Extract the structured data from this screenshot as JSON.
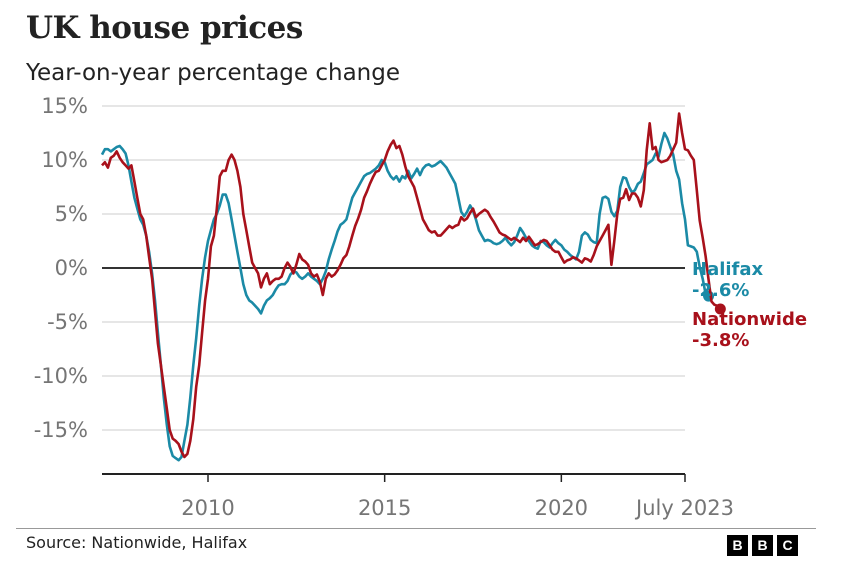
{
  "header": {
    "title": "UK house prices",
    "subtitle": "Year-on-year percentage change"
  },
  "footer": {
    "source": "Source: Nationwide, Halifax",
    "logo_letters": [
      "B",
      "B",
      "C"
    ]
  },
  "chart_data": {
    "type": "line",
    "title": "UK house prices",
    "subtitle": "Year-on-year percentage change",
    "xlabel": "",
    "ylabel": "",
    "x_start": "2007-01",
    "x_end": "2023-07",
    "x_frequency": "monthly",
    "xlim": [
      2007.0,
      2023.5
    ],
    "ylim": [
      -19,
      15
    ],
    "yticks": [
      15,
      10,
      5,
      0,
      -5,
      -10,
      -15
    ],
    "ytick_labels": [
      "15%",
      "10%",
      "5%",
      "0%",
      "-5%",
      "-10%",
      "-15%"
    ],
    "xticks": [
      2010,
      2015,
      2020,
      2023.5
    ],
    "xtick_labels": [
      "2010",
      "2015",
      "2020",
      "July 2023"
    ],
    "grid": true,
    "legend": "direct-labels-right",
    "series": [
      {
        "name": "Halifax",
        "color": "#1b8aa6",
        "end_label": "Halifax",
        "end_value_label": "-2.6%",
        "values": [
          10.5,
          11,
          11,
          10.8,
          11,
          11.2,
          11.3,
          11,
          10.6,
          9.5,
          8,
          6.5,
          5.5,
          4.5,
          4,
          3,
          1.5,
          -0.5,
          -3,
          -6,
          -9,
          -12,
          -14.5,
          -16.5,
          -17.4,
          -17.6,
          -17.8,
          -17.5,
          -16,
          -14.5,
          -12,
          -9,
          -6.5,
          -3.5,
          -1,
          1,
          2.5,
          3.5,
          4.5,
          5,
          5.8,
          6.8,
          6.8,
          6,
          4.5,
          3,
          1.5,
          0,
          -1.5,
          -2.5,
          -3,
          -3.2,
          -3.5,
          -3.8,
          -4.2,
          -3.5,
          -3,
          -2.8,
          -2.5,
          -2,
          -1.6,
          -1.5,
          -1.5,
          -1.2,
          -0.6,
          -0.3,
          -0.4,
          -0.8,
          -1,
          -0.8,
          -0.5,
          -0.8,
          -1,
          -1.2,
          -1.5,
          -1,
          -0.3,
          0.8,
          1.7,
          2.5,
          3.4,
          4,
          4.2,
          4.5,
          5.5,
          6.5,
          7,
          7.5,
          8,
          8.5,
          8.7,
          8.8,
          9,
          9.2,
          9.5,
          10,
          9.8,
          9,
          8.5,
          8.2,
          8.5,
          8,
          8.5,
          8.3,
          9,
          8.3,
          8.7,
          9.2,
          8.6,
          9.2,
          9.5,
          9.6,
          9.4,
          9.5,
          9.7,
          9.9,
          9.6,
          9.3,
          8.8,
          8.3,
          7.8,
          6.5,
          5.2,
          4.8,
          5.2,
          5.8,
          5.3,
          4.5,
          3.5,
          3,
          2.5,
          2.6,
          2.5,
          2.3,
          2.2,
          2.3,
          2.5,
          2.8,
          2.4,
          2.1,
          2.4,
          3,
          3.7,
          3.3,
          2.8,
          2.5,
          2.1,
          1.9,
          1.8,
          2.5,
          2.4,
          2.1,
          1.9,
          2.3,
          2.6,
          2.3,
          2.1,
          1.7,
          1.5,
          1.2,
          1,
          0.8,
          1.5,
          3,
          3.3,
          3.1,
          2.6,
          2.4,
          2.3,
          5,
          6.5,
          6.6,
          6.4,
          5.2,
          4.8,
          5.3,
          7.5,
          8.4,
          8.3,
          7.5,
          7,
          7.2,
          7.8,
          8,
          8.8,
          9.6,
          9.8,
          10,
          10.6,
          10.3,
          11.5,
          12.5,
          12,
          11.2,
          10.5,
          9,
          8.2,
          6,
          4.5,
          2.1,
          2,
          1.9,
          1.5,
          0.1,
          -1,
          -2.4,
          -2.6
        ]
      },
      {
        "name": "Nationwide",
        "color": "#a8111b",
        "end_label": "Nationwide",
        "end_value_label": "-3.8%",
        "values": [
          9.5,
          9.8,
          9.3,
          10.2,
          10.4,
          10.8,
          10.2,
          9.8,
          9.5,
          9.2,
          9.5,
          8,
          6.5,
          5,
          4.5,
          3,
          1,
          -1,
          -4,
          -7,
          -9,
          -11,
          -13,
          -15,
          -15.8,
          -16,
          -16.3,
          -17,
          -17.5,
          -17.2,
          -16,
          -14,
          -11,
          -9,
          -6,
          -3,
          -1,
          2,
          3,
          5.5,
          8.5,
          9,
          9,
          10,
          10.5,
          10,
          9,
          7.5,
          5,
          3.5,
          2,
          0.5,
          0,
          -0.5,
          -1.8,
          -1,
          -0.5,
          -1.5,
          -1.2,
          -1,
          -1,
          -0.8,
          0,
          0.5,
          0.1,
          -0.5,
          0.3,
          1.3,
          0.8,
          0.6,
          0.3,
          -0.5,
          -0.8,
          -0.6,
          -1.3,
          -2.5,
          -1,
          -0.5,
          -0.8,
          -0.6,
          -0.2,
          0.3,
          0.9,
          1.2,
          2,
          3,
          3.9,
          4.6,
          5.4,
          6.5,
          7.1,
          7.8,
          8.4,
          8.9,
          9,
          9.5,
          10,
          10.8,
          11.4,
          11.8,
          11.1,
          11.3,
          10.5,
          9.4,
          8.5,
          8,
          7.5,
          6.5,
          5.5,
          4.5,
          4,
          3.5,
          3.3,
          3.4,
          3,
          3,
          3.3,
          3.6,
          3.9,
          3.7,
          3.9,
          4,
          4.7,
          4.4,
          4.6,
          5.1,
          5.5,
          4.7,
          5,
          5.2,
          5.4,
          5.2,
          4.7,
          4.3,
          3.8,
          3.3,
          3.1,
          3,
          2.8,
          2.6,
          2.8,
          2.6,
          2.4,
          2.8,
          2.5,
          2.9,
          2.5,
          2.1,
          2.2,
          2.4,
          2.6,
          2.5,
          2.1,
          1.7,
          1.5,
          1.5,
          1,
          0.5,
          0.7,
          0.8,
          1,
          0.9,
          0.7,
          0.5,
          0.9,
          0.8,
          0.6,
          1.2,
          2,
          2.5,
          3,
          3.5,
          4,
          0.3,
          2.5,
          5,
          6.4,
          6.5,
          7.3,
          6.3,
          6.9,
          6.9,
          6.5,
          5.7,
          7.2,
          10.9,
          13.4,
          11,
          11.2,
          10,
          9.8,
          9.9,
          10,
          10.4,
          11,
          11.6,
          14.3,
          12.5,
          11,
          10.9,
          10.4,
          10,
          7.2,
          4.4,
          2.8,
          1.1,
          -1.1,
          -3.1,
          -3.4,
          -3.5,
          -3.8
        ]
      }
    ]
  }
}
